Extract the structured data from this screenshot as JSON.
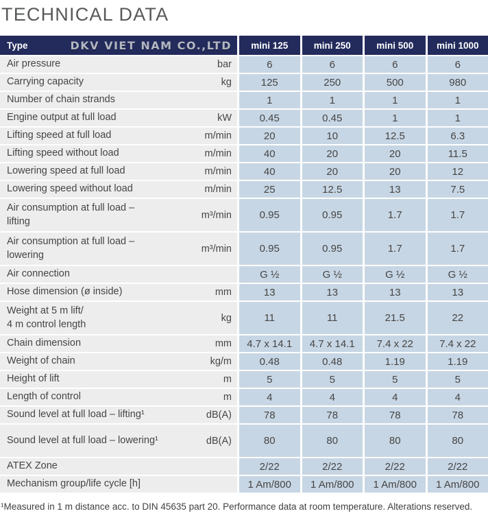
{
  "page": {
    "title": "TECHNICAL DATA",
    "footnote": "¹Measured in 1 m distance acc. to DIN 45635 part 20. Performance data at room temperature. Alterations reserved."
  },
  "colors": {
    "header_navy": "#232b5c",
    "value_cell_blue": "#c7d6e4",
    "label_cell_gray": "#ededed",
    "brand_silver": "#b3b7c1",
    "title_gray": "#57585a",
    "body_text": "#454545"
  },
  "table": {
    "header": {
      "type_label": "Type",
      "brand": "DKV VIET NAM CO.,LTD",
      "columns": [
        "mini 125",
        "mini 250",
        "mini 500",
        "mini 1000"
      ]
    },
    "rows": [
      {
        "label": "Air pressure",
        "unit": "bar",
        "values": [
          "6",
          "6",
          "6",
          "6"
        ]
      },
      {
        "label": "Carrying capacity",
        "unit": "kg",
        "values": [
          "125",
          "250",
          "500",
          "980"
        ]
      },
      {
        "label": "Number of chain strands",
        "unit": "",
        "values": [
          "1",
          "1",
          "1",
          "1"
        ]
      },
      {
        "label": "Engine output at full load",
        "unit": "kW",
        "values": [
          "0.45",
          "0.45",
          "1",
          "1"
        ]
      },
      {
        "label": "Lifting speed at full load",
        "unit": "m/min",
        "values": [
          "20",
          "10",
          "12.5",
          "6.3"
        ]
      },
      {
        "label": "Lifting speed without load",
        "unit": "m/min",
        "values": [
          "40",
          "20",
          "20",
          "11.5"
        ]
      },
      {
        "label": "Lowering speed at full load",
        "unit": "m/min",
        "values": [
          "40",
          "20",
          "20",
          "12"
        ]
      },
      {
        "label": "Lowering speed without load",
        "unit": "m/min",
        "values": [
          "25",
          "12.5",
          "13",
          "7.5"
        ]
      },
      {
        "label": "Air consumption at full load –\nlifting",
        "unit": "m³/min",
        "values": [
          "0.95",
          "0.95",
          "1.7",
          "1.7"
        ],
        "tall": true
      },
      {
        "label": "Air consumption at full load –\nlowering",
        "unit": "m³/min",
        "values": [
          "0.95",
          "0.95",
          "1.7",
          "1.7"
        ],
        "tall": true
      },
      {
        "label": "Air connection",
        "unit": "",
        "values": [
          "G ½",
          "G ½",
          "G ½",
          "G ½"
        ]
      },
      {
        "label": "Hose dimension (ø inside)",
        "unit": "mm",
        "values": [
          "13",
          "13",
          "13",
          "13"
        ]
      },
      {
        "label": "Weight at 5 m lift/\n4 m control length",
        "unit": "kg",
        "values": [
          "11",
          "11",
          "21.5",
          "22"
        ],
        "tall": true
      },
      {
        "label": "Chain dimension",
        "unit": "mm",
        "values": [
          "4.7 x 14.1",
          "4.7 x 14.1",
          "7.4 x 22",
          "7.4 x 22"
        ]
      },
      {
        "label": "Weight of chain",
        "unit": "kg/m",
        "values": [
          "0.48",
          "0.48",
          "1.19",
          "1.19"
        ]
      },
      {
        "label": "Height of lift",
        "unit": "m",
        "values": [
          "5",
          "5",
          "5",
          "5"
        ]
      },
      {
        "label": "Length of control",
        "unit": "m",
        "values": [
          "4",
          "4",
          "4",
          "4"
        ]
      },
      {
        "label": "Sound level at full load – lifting¹",
        "unit": "dB(A)",
        "values": [
          "78",
          "78",
          "78",
          "78"
        ]
      },
      {
        "label": "Sound level at full load – lowering¹",
        "unit": "dB(A)",
        "values": [
          "80",
          "80",
          "80",
          "80"
        ],
        "tall": true
      },
      {
        "label": "ATEX Zone",
        "unit": "",
        "values": [
          "2/22",
          "2/22",
          "2/22",
          "2/22"
        ]
      },
      {
        "label": "Mechanism group/life cycle [h]",
        "unit": "",
        "values": [
          "1 Am/800",
          "1 Am/800",
          "1 Am/800",
          "1 Am/800"
        ]
      }
    ]
  }
}
